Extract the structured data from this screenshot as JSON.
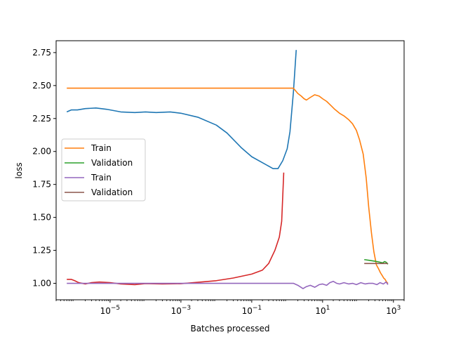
{
  "chart_data": {
    "type": "line",
    "xlabel": "Batches processed",
    "ylabel": "loss",
    "xscale": "log",
    "xlim": [
      3e-07,
      2000
    ],
    "ylim": [
      0.875,
      2.84
    ],
    "yticks": [
      "1.00",
      "1.25",
      "1.50",
      "1.75",
      "2.00",
      "2.25",
      "2.50",
      "2.75"
    ],
    "xticks": [
      {
        "base": "10",
        "exp": "−5",
        "value": 1e-05
      },
      {
        "base": "10",
        "exp": "−3",
        "value": 0.001
      },
      {
        "base": "10",
        "exp": "−1",
        "value": 0.1
      },
      {
        "base": "10",
        "exp": "1",
        "value": 10
      },
      {
        "base": "10",
        "exp": "3",
        "value": 1000
      }
    ],
    "grid": false,
    "legend_position": "center-left",
    "legend": [
      {
        "label": "Train",
        "color": "#ff7f0e"
      },
      {
        "label": "Validation",
        "color": "#2ca02c"
      },
      {
        "label": "Train",
        "color": "#9467bd"
      },
      {
        "label": "Validation",
        "color": "#8c564b"
      }
    ],
    "series": [
      {
        "color": "#1f77b4",
        "points": [
          [
            6e-07,
            2.3
          ],
          [
            8e-07,
            2.315
          ],
          [
            1.2e-06,
            2.315
          ],
          [
            2e-06,
            2.325
          ],
          [
            4e-06,
            2.33
          ],
          [
            8e-06,
            2.32
          ],
          [
            2e-05,
            2.3
          ],
          [
            5e-05,
            2.295
          ],
          [
            0.0001,
            2.3
          ],
          [
            0.0002,
            2.295
          ],
          [
            0.0005,
            2.3
          ],
          [
            0.001,
            2.29
          ],
          [
            0.003,
            2.26
          ],
          [
            0.01,
            2.2
          ],
          [
            0.02,
            2.14
          ],
          [
            0.05,
            2.03
          ],
          [
            0.1,
            1.96
          ],
          [
            0.2,
            1.915
          ],
          [
            0.4,
            1.87
          ],
          [
            0.55,
            1.87
          ],
          [
            0.75,
            1.93
          ],
          [
            1.0,
            2.02
          ],
          [
            1.2,
            2.15
          ],
          [
            1.5,
            2.45
          ],
          [
            1.8,
            2.77
          ]
        ]
      },
      {
        "color": "#ff7f0e",
        "points": [
          [
            6e-07,
            2.48
          ],
          [
            1,
            2.48
          ],
          [
            1.5,
            2.48
          ],
          [
            2.0,
            2.44
          ],
          [
            2.5,
            2.42
          ],
          [
            3.0,
            2.4
          ],
          [
            3.5,
            2.39
          ],
          [
            4.5,
            2.41
          ],
          [
            6,
            2.43
          ],
          [
            8,
            2.42
          ],
          [
            10,
            2.4
          ],
          [
            13,
            2.38
          ],
          [
            17,
            2.35
          ],
          [
            22,
            2.32
          ],
          [
            30,
            2.29
          ],
          [
            40,
            2.27
          ],
          [
            55,
            2.24
          ],
          [
            70,
            2.21
          ],
          [
            90,
            2.16
          ],
          [
            110,
            2.09
          ],
          [
            140,
            1.98
          ],
          [
            170,
            1.8
          ],
          [
            200,
            1.58
          ],
          [
            240,
            1.38
          ],
          [
            280,
            1.24
          ],
          [
            330,
            1.14
          ],
          [
            380,
            1.11
          ],
          [
            430,
            1.08
          ],
          [
            480,
            1.06
          ],
          [
            530,
            1.04
          ],
          [
            580,
            1.03
          ],
          [
            640,
            1.01
          ],
          [
            700,
            1.0
          ]
        ]
      },
      {
        "color": "#2ca02c",
        "points": [
          [
            150,
            1.18
          ],
          [
            200,
            1.175
          ],
          [
            260,
            1.17
          ],
          [
            340,
            1.165
          ],
          [
            420,
            1.16
          ],
          [
            500,
            1.155
          ],
          [
            560,
            1.165
          ],
          [
            620,
            1.16
          ],
          [
            700,
            1.145
          ]
        ]
      },
      {
        "color": "#d62728",
        "points": [
          [
            6e-07,
            1.03
          ],
          [
            8e-07,
            1.03
          ],
          [
            1e-06,
            1.02
          ],
          [
            1.3e-06,
            1.005
          ],
          [
            2e-06,
            0.995
          ],
          [
            3e-06,
            1.005
          ],
          [
            5e-06,
            1.01
          ],
          [
            1e-05,
            1.005
          ],
          [
            2e-05,
            0.995
          ],
          [
            5e-05,
            0.99
          ],
          [
            0.0001,
            0.998
          ],
          [
            0.0003,
            0.995
          ],
          [
            0.001,
            0.997
          ],
          [
            0.003,
            1.008
          ],
          [
            0.01,
            1.02
          ],
          [
            0.03,
            1.04
          ],
          [
            0.1,
            1.07
          ],
          [
            0.2,
            1.1
          ],
          [
            0.3,
            1.15
          ],
          [
            0.45,
            1.25
          ],
          [
            0.6,
            1.35
          ],
          [
            0.7,
            1.47
          ],
          [
            0.8,
            1.84
          ]
        ]
      },
      {
        "color": "#9467bd",
        "points": [
          [
            6e-07,
            1.0
          ],
          [
            1.5,
            1.0
          ],
          [
            2.0,
            0.985
          ],
          [
            2.8,
            0.96
          ],
          [
            3.5,
            0.975
          ],
          [
            4.5,
            0.985
          ],
          [
            6,
            0.97
          ],
          [
            8,
            0.99
          ],
          [
            10,
            0.995
          ],
          [
            13,
            0.985
          ],
          [
            16,
            1.005
          ],
          [
            20,
            1.015
          ],
          [
            25,
            1.0
          ],
          [
            30,
            0.995
          ],
          [
            40,
            1.005
          ],
          [
            55,
            0.995
          ],
          [
            70,
            1.0
          ],
          [
            90,
            0.99
          ],
          [
            120,
            1.005
          ],
          [
            160,
            0.995
          ],
          [
            200,
            1.0
          ],
          [
            260,
            1.0
          ],
          [
            340,
            0.99
          ],
          [
            420,
            1.005
          ],
          [
            520,
            0.995
          ],
          [
            620,
            1.01
          ],
          [
            700,
            0.99
          ]
        ]
      },
      {
        "color": "#8c564b",
        "points": [
          [
            150,
            1.15
          ],
          [
            250,
            1.15
          ],
          [
            400,
            1.15
          ],
          [
            550,
            1.15
          ],
          [
            700,
            1.15
          ]
        ]
      }
    ]
  }
}
